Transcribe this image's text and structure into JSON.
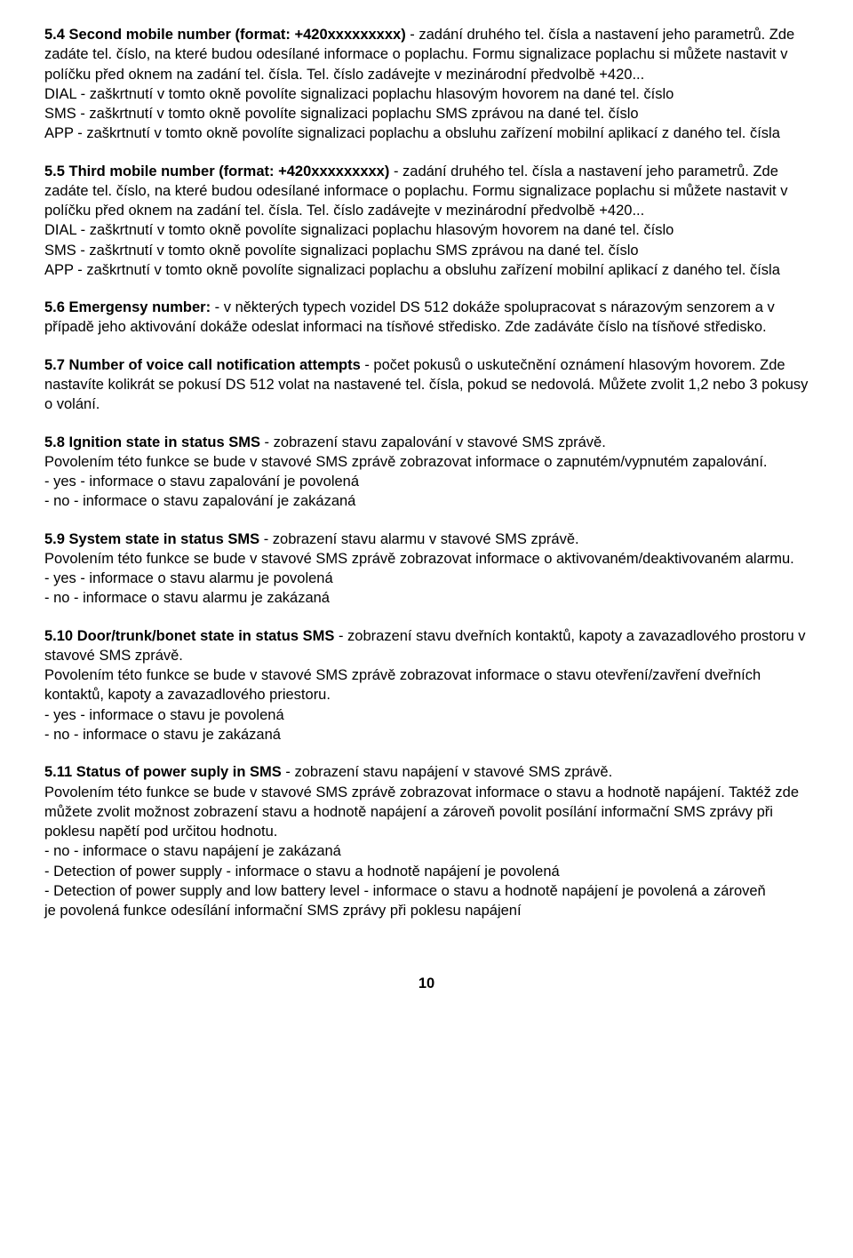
{
  "sections": [
    {
      "heading": "5.4  Second mobile number (format: +420xxxxxxxxx)",
      "body": " - zadání druhého tel. čísla a nastavení jeho parametrů. Zde zadáte tel. číslo, na které budou odesílané informace o poplachu. Formu signalizace poplachu si můžete nastavit v políčku před oknem na zadání tel. čísla. Tel. číslo zadávejte v mezinárodní předvolbě +420...",
      "lines": [
        "DIAL - zaškrtnutí v tomto okně povolíte signalizaci poplachu hlasovým hovorem na dané tel. číslo",
        "SMS - zaškrtnutí v tomto okně povolíte signalizaci poplachu SMS zprávou na dané tel. číslo",
        "APP - zaškrtnutí v tomto okně povolíte signalizaci poplachu a obsluhu zařízení mobilní aplikací z daného tel. čísla"
      ]
    },
    {
      "heading": "5.5  Third mobile number (format: +420xxxxxxxxx)",
      "body": " - zadání druhého tel. čísla a nastavení jeho parametrů. Zde zadáte tel. číslo, na které budou odesílané informace o poplachu. Formu signalizace poplachu si můžete nastavit v políčku před oknem na zadání tel. čísla. Tel. číslo zadávejte v mezinárodní předvolbě +420...",
      "lines": [
        "DIAL - zaškrtnutí v tomto okně povolíte signalizaci poplachu hlasovým hovorem na dané tel. číslo",
        "SMS - zaškrtnutí v tomto okně povolíte signalizaci poplachu SMS zprávou na dané tel. číslo",
        "APP - zaškrtnutí v tomto okně povolíte signalizaci poplachu a obsluhu zařízení mobilní aplikací z daného tel. čísla"
      ]
    },
    {
      "heading": "5.6  Emergensy number:",
      "body": " - v některých typech vozidel DS 512 dokáže spolupracovat s nárazovým senzorem a v případě jeho aktivování dokáže odeslat informaci na tísňové středisko. Zde zadáváte číslo na tísňové středisko.",
      "lines": []
    },
    {
      "heading": "5.7  Number of voice call notification attempts",
      "body": " - počet pokusů o uskutečnění oznámení hlasovým hovorem. Zde nastavíte kolikrát se pokusí DS 512 volat na nastavené tel. čísla, pokud se nedovolá. Můžete zvolit 1,2 nebo 3 pokusy o volání.",
      "lines": []
    },
    {
      "heading": "5.8  Ignition state in status SMS",
      "body": " - zobrazení stavu zapalování v stavové SMS zprávě.",
      "lines": [
        "Povolením této funkce se bude v stavové SMS zprávě zobrazovat informace o zapnutém/vypnutém zapalování.",
        "- yes - informace o stavu zapalování je povolená",
        "- no - informace o stavu zapalování je zakázaná"
      ]
    },
    {
      "heading": "5.9  System state in status SMS",
      "body": " - zobrazení stavu alarmu v stavové SMS zprávě.",
      "lines": [
        "Povolením této funkce se bude v stavové SMS zprávě zobrazovat informace o aktivovaném/deaktivovaném alarmu.",
        "- yes - informace o stavu alarmu je povolená",
        "- no - informace o stavu alarmu je zakázaná"
      ]
    },
    {
      "heading": "5.10  Door/trunk/bonet state in status SMS",
      "body": " - zobrazení stavu dveřních kontaktů, kapoty a zavazadlového prostoru v stavové SMS zprávě.",
      "lines": [
        "Povolením této funkce se bude v stavové SMS zprávě zobrazovat informace o stavu otevření/zavření dveřních kontaktů, kapoty a zavazadlového priestoru.",
        "- yes - informace o stavu je povolená",
        "- no - informace o stavu je zakázaná"
      ]
    },
    {
      "heading": "5.11  Status of power suply in SMS",
      "body": " - zobrazení stavu napájení v stavové SMS zprávě.",
      "lines": [
        "Povolením této funkce se bude v stavové SMS zprávě zobrazovat informace o stavu a hodnotě napájení. Taktéž zde můžete zvolit možnost zobrazení stavu a hodnotě napájení a zároveň povolit posílání informační SMS zprávy při poklesu napětí pod určitou hodnotu.",
        "- no - informace o stavu napájení je zakázaná",
        "- Detection of power supply - informace o stavu a hodnotě napájení je povolená",
        "- Detection of power supply and low battery level - informace o stavu a hodnotě napájení je povolená a zároveň",
        "  je povolená funkce odesílání informační SMS zprávy při poklesu napájení"
      ]
    }
  ],
  "pageNumber": "10"
}
